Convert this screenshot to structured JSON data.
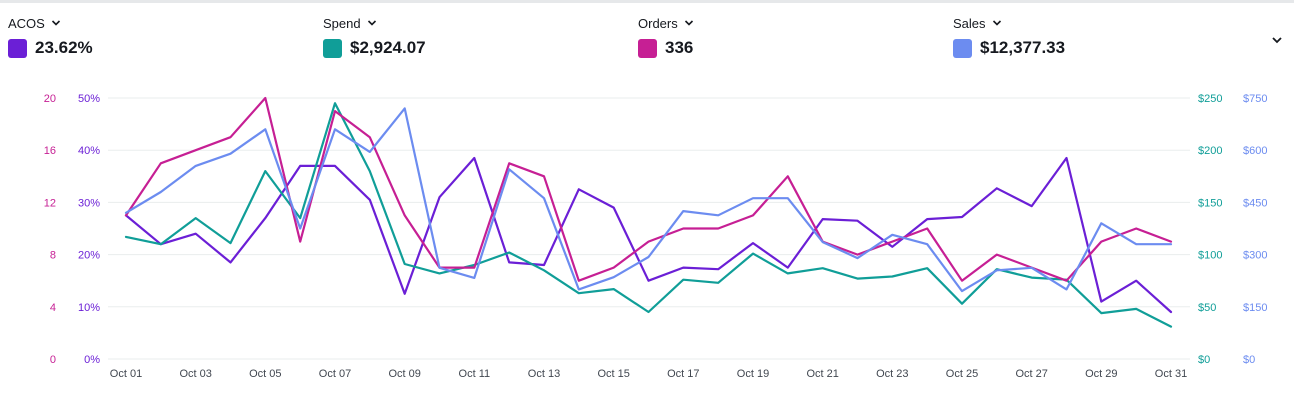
{
  "metrics": [
    {
      "label": "ACOS",
      "value": "23.62%",
      "color": "#6b1fd6"
    },
    {
      "label": "Spend",
      "value": "$2,924.07",
      "color": "#109e98"
    },
    {
      "label": "Orders",
      "value": "336",
      "color": "#c61f94"
    },
    {
      "label": "Sales",
      "value": "$12,377.33",
      "color": "#6c8cf0"
    }
  ],
  "icons": {
    "metric_dropdown": "chevron-down-icon",
    "expand": "chevron-down-icon"
  },
  "chart_data": {
    "type": "line",
    "x": [
      "Oct 01",
      "Oct 02",
      "Oct 03",
      "Oct 04",
      "Oct 05",
      "Oct 06",
      "Oct 07",
      "Oct 08",
      "Oct 09",
      "Oct 10",
      "Oct 11",
      "Oct 12",
      "Oct 13",
      "Oct 14",
      "Oct 15",
      "Oct 16",
      "Oct 17",
      "Oct 18",
      "Oct 19",
      "Oct 20",
      "Oct 21",
      "Oct 22",
      "Oct 23",
      "Oct 24",
      "Oct 25",
      "Oct 26",
      "Oct 27",
      "Oct 28",
      "Oct 29",
      "Oct 30",
      "Oct 31"
    ],
    "x_tick_labels": [
      "Oct 01",
      "Oct 03",
      "Oct 05",
      "Oct 07",
      "Oct 09",
      "Oct 11",
      "Oct 13",
      "Oct 15",
      "Oct 17",
      "Oct 19",
      "Oct 21",
      "Oct 23",
      "Oct 25",
      "Oct 27",
      "Oct 29",
      "Oct 31"
    ],
    "axes": [
      {
        "id": "orders",
        "side": "left-outer",
        "ticks": [
          "0",
          "4",
          "8",
          "12",
          "16",
          "20"
        ],
        "range": [
          0,
          20
        ],
        "color": "#c61f94"
      },
      {
        "id": "acos",
        "side": "left-inner",
        "ticks": [
          "0%",
          "10%",
          "20%",
          "30%",
          "40%",
          "50%"
        ],
        "range": [
          0,
          50
        ],
        "color": "#6b1fd6"
      },
      {
        "id": "spend",
        "side": "right-inner",
        "ticks": [
          "$0",
          "$50",
          "$100",
          "$150",
          "$200",
          "$250"
        ],
        "range": [
          0,
          250
        ],
        "color": "#109e98"
      },
      {
        "id": "sales",
        "side": "right-outer",
        "ticks": [
          "$0",
          "$150",
          "$300",
          "$450",
          "$600",
          "$750"
        ],
        "range": [
          0,
          750
        ],
        "color": "#6c8cf0"
      }
    ],
    "grid": true,
    "series": [
      {
        "name": "ACOS",
        "axis": "acos",
        "color": "#6b1fd6",
        "values": [
          27.5,
          22,
          24,
          18.5,
          27,
          37,
          37,
          30.5,
          12.5,
          31,
          38.5,
          18.5,
          18,
          32.5,
          29,
          15,
          17.5,
          17.2,
          22.2,
          17.5,
          26.8,
          26.5,
          21.5,
          26.8,
          27.2,
          32.7,
          29.3,
          38.5,
          11,
          15,
          9
        ]
      },
      {
        "name": "Spend",
        "axis": "spend",
        "color": "#109e98",
        "values": [
          117,
          110,
          135,
          111,
          180,
          135,
          245,
          180,
          91,
          82,
          90,
          102,
          85,
          63,
          67,
          45,
          76,
          73,
          101,
          82,
          87,
          77,
          79,
          87,
          53,
          86,
          78,
          76,
          44,
          48,
          31
        ]
      },
      {
        "name": "Orders",
        "axis": "orders",
        "color": "#c61f94",
        "values": [
          11,
          15,
          16,
          17,
          20,
          9,
          19,
          17,
          11,
          7,
          7,
          15,
          14,
          6,
          7,
          9,
          10,
          10,
          11,
          14,
          9,
          8,
          9,
          10,
          6,
          8,
          7,
          6,
          9,
          10,
          9
        ]
      },
      {
        "name": "Sales",
        "axis": "sales",
        "color": "#6c8cf0",
        "values": [
          420,
          480,
          555,
          590,
          660,
          375,
          660,
          595,
          720,
          262,
          233,
          545,
          462,
          200,
          235,
          293,
          425,
          413,
          462,
          462,
          336,
          290,
          357,
          330,
          195,
          255,
          262,
          200,
          390,
          330,
          330
        ]
      }
    ]
  }
}
